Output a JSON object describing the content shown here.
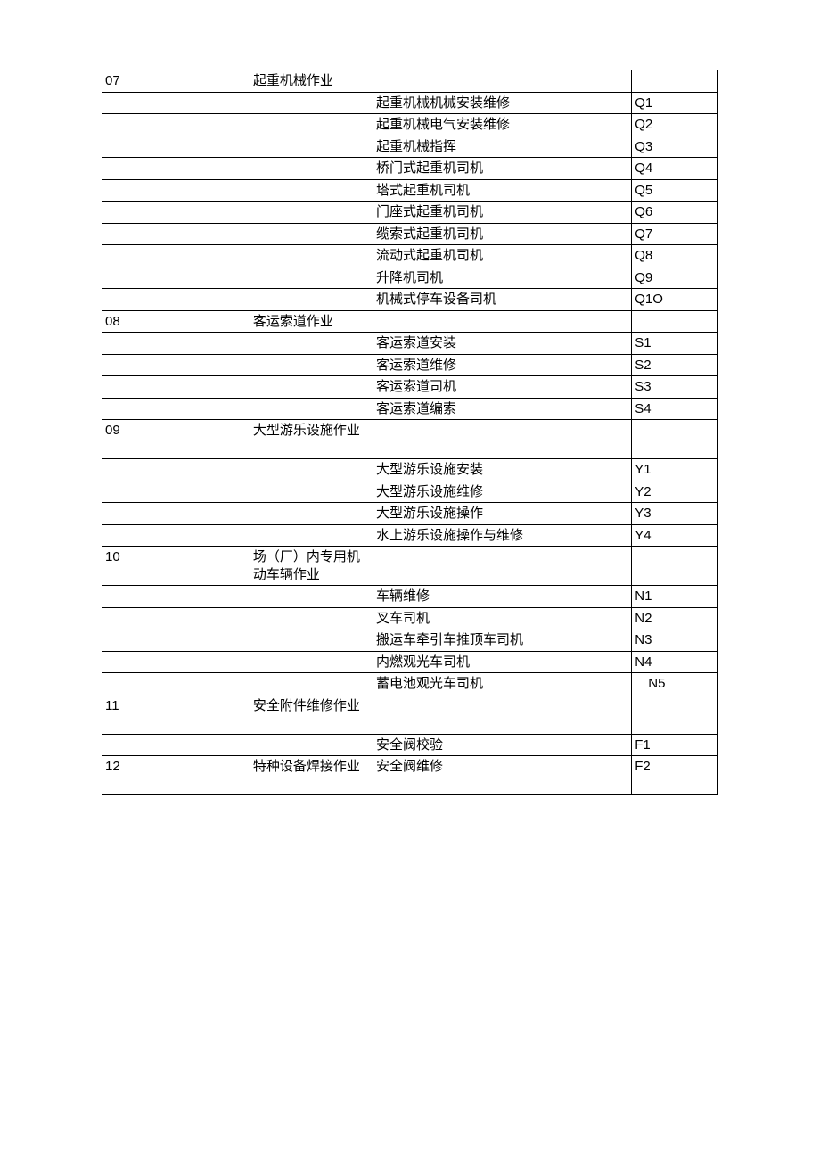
{
  "table": {
    "column_widths": [
      "24%",
      "20%",
      "42%",
      "14%"
    ],
    "border_color": "#000000",
    "background_color": "#ffffff",
    "font_size": 15,
    "rows": [
      [
        "07",
        "起重机械作业",
        "",
        ""
      ],
      [
        "",
        "",
        "起重机械机械安装维修",
        "Q1"
      ],
      [
        "",
        "",
        "起重机械电气安装维修",
        "Q2"
      ],
      [
        "",
        "",
        "起重机械指挥",
        "Q3"
      ],
      [
        "",
        "",
        "桥门式起重机司机",
        "Q4"
      ],
      [
        "",
        "",
        "塔式起重机司机",
        "Q5"
      ],
      [
        "",
        "",
        "门座式起重机司机",
        "Q6"
      ],
      [
        "",
        "",
        "缆索式起重机司机",
        "Q7"
      ],
      [
        "",
        "",
        "流动式起重机司机",
        "Q8"
      ],
      [
        "",
        "",
        "升降机司机",
        "Q9"
      ],
      [
        "",
        "",
        "机械式停车设备司机",
        "Q1O"
      ],
      [
        "08",
        "客运索道作业",
        "",
        ""
      ],
      [
        "",
        "",
        "客运索道安装",
        "S1"
      ],
      [
        "",
        "",
        "客运索道维修",
        "S2"
      ],
      [
        "",
        "",
        "客运索道司机",
        "S3"
      ],
      [
        "",
        "",
        "客运索道编索",
        "S4"
      ],
      [
        "09",
        "大型游乐设施作业",
        "",
        ""
      ],
      [
        "",
        "",
        "大型游乐设施安装",
        "Y1"
      ],
      [
        "",
        "",
        "大型游乐设施维修",
        "Y2"
      ],
      [
        "",
        "",
        "大型游乐设施操作",
        "Y3"
      ],
      [
        "",
        "",
        "水上游乐设施操作与维修",
        "Y4"
      ],
      [
        "10",
        "场（厂）内专用机动车辆作业",
        "",
        ""
      ],
      [
        "",
        "",
        "车辆维修",
        "N1"
      ],
      [
        "",
        "",
        "叉车司机",
        "N2"
      ],
      [
        "",
        "",
        "搬运车牵引车推顶车司机",
        "N3"
      ],
      [
        "",
        "",
        "内燃观光车司机",
        "N4"
      ],
      [
        "",
        "",
        "蓄电池观光车司机",
        "N5"
      ],
      [
        "11",
        "安全附件维修作业",
        "",
        ""
      ],
      [
        "",
        "",
        "安全阀校验",
        "F1"
      ],
      [
        "12",
        "特种设备焊接作业",
        "安全阀维修",
        "F2"
      ]
    ],
    "tall_rows": [
      16,
      21,
      27,
      29
    ],
    "indent_rows": [
      26
    ]
  }
}
